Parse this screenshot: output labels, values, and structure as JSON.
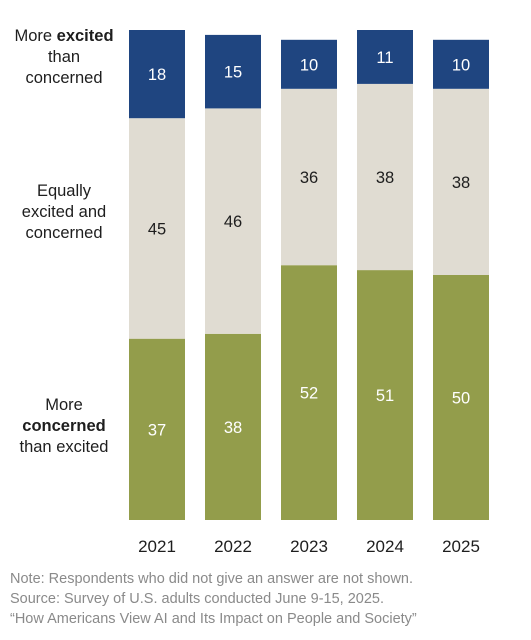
{
  "chart_data": {
    "type": "bar",
    "stacked": true,
    "categories": [
      "2021",
      "2022",
      "2023",
      "2024",
      "2025"
    ],
    "series": [
      {
        "name": "More concerned than excited",
        "label_parts": [
          {
            "text": "More",
            "bold": false,
            "break": true
          },
          {
            "text": "concerned",
            "bold": true,
            "break": true
          },
          {
            "text": "than excited",
            "bold": false,
            "break": false
          }
        ],
        "color": "#939d4b",
        "value_color": "#ffffff",
        "values": [
          37,
          38,
          52,
          51,
          50
        ]
      },
      {
        "name": "Equally excited and concerned",
        "label_parts": [
          {
            "text": "Equally",
            "bold": false,
            "break": true
          },
          {
            "text": "excited and",
            "bold": false,
            "break": true
          },
          {
            "text": "concerned",
            "bold": false,
            "break": false
          }
        ],
        "color": "#e0dcd2",
        "value_color": "#1e1e1e",
        "values": [
          45,
          46,
          36,
          38,
          38
        ]
      },
      {
        "name": "More excited than concerned",
        "label_parts": [
          {
            "text": "More ",
            "bold": false,
            "break": false
          },
          {
            "text": "excited",
            "bold": true,
            "break": true
          },
          {
            "text": "than",
            "bold": false,
            "break": true
          },
          {
            "text": "concerned",
            "bold": false,
            "break": false
          }
        ],
        "color": "#1f4580",
        "value_color": "#ffffff",
        "values": [
          18,
          15,
          10,
          11,
          10
        ]
      }
    ],
    "ylim": [
      0,
      100
    ],
    "grid": false,
    "legend": "left"
  },
  "notes": {
    "note": "Note: Respondents who did not give an answer are not shown.",
    "source": "Source: Survey of U.S. adults conducted June 9-15, 2025.",
    "report": "“How Americans View AI and Its Impact on People and Society”"
  }
}
